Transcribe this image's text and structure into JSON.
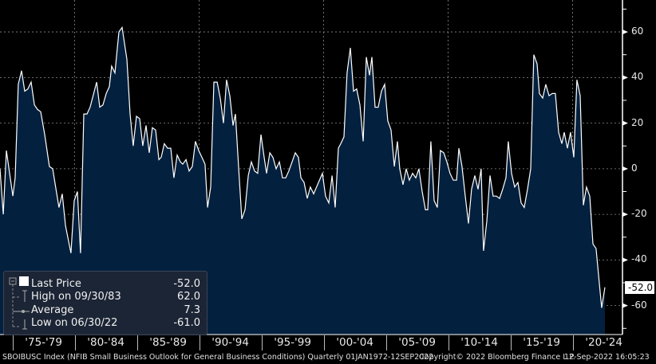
{
  "chart_data": {
    "type": "area",
    "title": "",
    "xlabel": "",
    "ylabel": "",
    "xlim": [
      1974,
      2024
    ],
    "ylim": [
      -72.7,
      74
    ],
    "y_ticks": [
      60,
      40,
      20,
      0,
      -20,
      -40,
      -60
    ],
    "x_grid_years": [
      1980,
      1990,
      2000,
      2010,
      2020
    ],
    "grid": true,
    "legend_position": "bottom-left",
    "colors": {
      "fill": "#03203f",
      "line": "#ffffff",
      "background": "#000000",
      "grid": "#8a8a8a"
    },
    "period_labels": [
      "'75-'79",
      "'80-'84",
      "'85-'89",
      "'90-'94",
      "'95-'99",
      "'00-'04",
      "'05-'09",
      "'10-'14",
      "'15-'19",
      "'20-'24"
    ],
    "last_value_label": "-52.0",
    "points": [
      [
        1974.0,
        0
      ],
      [
        1974.26,
        -20
      ],
      [
        1974.51,
        8
      ],
      [
        1975.03,
        -12
      ],
      [
        1975.22,
        -4
      ],
      [
        1975.47,
        37
      ],
      [
        1975.73,
        43
      ],
      [
        1975.99,
        34
      ],
      [
        1976.24,
        35
      ],
      [
        1976.5,
        38
      ],
      [
        1976.76,
        28
      ],
      [
        1977.01,
        26
      ],
      [
        1977.27,
        25
      ],
      [
        1977.59,
        15
      ],
      [
        1977.97,
        1
      ],
      [
        1978.23,
        0
      ],
      [
        1978.74,
        -17
      ],
      [
        1979.0,
        -11
      ],
      [
        1979.26,
        -25
      ],
      [
        1979.7,
        -37
      ],
      [
        1979.96,
        -14
      ],
      [
        1980.22,
        -10
      ],
      [
        1980.47,
        -37
      ],
      [
        1980.73,
        24
      ],
      [
        1980.99,
        24
      ],
      [
        1981.24,
        27
      ],
      [
        1981.76,
        38
      ],
      [
        1982.01,
        27
      ],
      [
        1982.27,
        28
      ],
      [
        1982.53,
        33
      ],
      [
        1982.78,
        36
      ],
      [
        1982.97,
        45
      ],
      [
        1983.23,
        42
      ],
      [
        1983.55,
        60
      ],
      [
        1983.81,
        62
      ],
      [
        1984.19,
        48
      ],
      [
        1984.45,
        24
      ],
      [
        1984.7,
        10
      ],
      [
        1984.96,
        23
      ],
      [
        1985.22,
        22
      ],
      [
        1985.47,
        10
      ],
      [
        1985.73,
        19
      ],
      [
        1985.99,
        7
      ],
      [
        1986.24,
        18
      ],
      [
        1986.5,
        17
      ],
      [
        1986.76,
        4
      ],
      [
        1986.95,
        5
      ],
      [
        1987.2,
        11
      ],
      [
        1987.46,
        9
      ],
      [
        1987.72,
        9
      ],
      [
        1987.97,
        -4
      ],
      [
        1988.23,
        6
      ],
      [
        1988.49,
        3
      ],
      [
        1988.68,
        2
      ],
      [
        1988.94,
        4
      ],
      [
        1989.19,
        -1
      ],
      [
        1989.45,
        1
      ],
      [
        1989.7,
        12
      ],
      [
        1989.96,
        8
      ],
      [
        1990.22,
        5
      ],
      [
        1990.47,
        2
      ],
      [
        1990.67,
        -17
      ],
      [
        1990.92,
        -8
      ],
      [
        1991.18,
        38
      ],
      [
        1991.44,
        38
      ],
      [
        1991.69,
        31
      ],
      [
        1991.95,
        20
      ],
      [
        1992.2,
        39
      ],
      [
        1992.46,
        32
      ],
      [
        1992.72,
        19
      ],
      [
        1992.91,
        24
      ],
      [
        1993.17,
        0
      ],
      [
        1993.42,
        -22
      ],
      [
        1993.68,
        -18
      ],
      [
        1993.94,
        -3
      ],
      [
        1994.19,
        3
      ],
      [
        1994.45,
        -1
      ],
      [
        1994.7,
        -2
      ],
      [
        1994.96,
        15
      ],
      [
        1995.22,
        5
      ],
      [
        1995.41,
        -2
      ],
      [
        1995.67,
        7
      ],
      [
        1995.92,
        5
      ],
      [
        1996.18,
        0
      ],
      [
        1996.44,
        3
      ],
      [
        1996.69,
        -4
      ],
      [
        1996.95,
        -4
      ],
      [
        1997.2,
        -1
      ],
      [
        1997.46,
        3
      ],
      [
        1997.72,
        7
      ],
      [
        1997.97,
        5
      ],
      [
        1998.17,
        -4
      ],
      [
        1998.42,
        -6
      ],
      [
        1998.68,
        -13
      ],
      [
        1998.93,
        -8
      ],
      [
        1999.19,
        -11
      ],
      [
        1999.9,
        -2
      ],
      [
        2000.15,
        -12
      ],
      [
        2000.41,
        -15
      ],
      [
        2000.67,
        -3
      ],
      [
        2000.92,
        -17
      ],
      [
        2001.18,
        9
      ],
      [
        2001.37,
        11
      ],
      [
        2001.63,
        14
      ],
      [
        2001.88,
        42
      ],
      [
        2002.14,
        53
      ],
      [
        2002.4,
        34
      ],
      [
        2002.65,
        35
      ],
      [
        2002.91,
        28
      ],
      [
        2003.17,
        12
      ],
      [
        2003.42,
        49
      ],
      [
        2003.68,
        41
      ],
      [
        2003.87,
        49
      ],
      [
        2004.13,
        27
      ],
      [
        2004.38,
        27
      ],
      [
        2004.64,
        34
      ],
      [
        2004.9,
        37
      ],
      [
        2005.15,
        21
      ],
      [
        2005.41,
        17
      ],
      [
        2005.67,
        1
      ],
      [
        2005.92,
        12
      ],
      [
        2006.11,
        0
      ],
      [
        2006.37,
        -7
      ],
      [
        2006.63,
        0
      ],
      [
        2006.88,
        -5
      ],
      [
        2007.14,
        -2
      ],
      [
        2007.4,
        -4
      ],
      [
        2007.65,
        0
      ],
      [
        2007.91,
        -10
      ],
      [
        2008.17,
        -18
      ],
      [
        2008.36,
        -18
      ],
      [
        2008.61,
        12
      ],
      [
        2008.87,
        -14
      ],
      [
        2009.13,
        -17
      ],
      [
        2009.38,
        8
      ],
      [
        2009.64,
        7
      ],
      [
        2009.9,
        3
      ],
      [
        2010.15,
        -2
      ],
      [
        2010.41,
        -5
      ],
      [
        2010.67,
        -5
      ],
      [
        2010.86,
        9
      ],
      [
        2011.11,
        1
      ],
      [
        2011.37,
        -12
      ],
      [
        2011.63,
        -24
      ],
      [
        2011.88,
        -9
      ],
      [
        2012.14,
        -3
      ],
      [
        2012.4,
        -9
      ],
      [
        2012.65,
        0
      ],
      [
        2012.84,
        -36
      ],
      [
        2013.1,
        -23
      ],
      [
        2013.36,
        -3
      ],
      [
        2013.61,
        -12
      ],
      [
        2013.87,
        -12
      ],
      [
        2014.13,
        -13
      ],
      [
        2014.38,
        -9
      ],
      [
        2014.64,
        -4
      ],
      [
        2014.83,
        12
      ],
      [
        2015.09,
        -2
      ],
      [
        2015.34,
        -8
      ],
      [
        2015.6,
        -6
      ],
      [
        2015.86,
        -15
      ],
      [
        2016.11,
        -17
      ],
      [
        2016.37,
        -9
      ],
      [
        2016.63,
        0
      ],
      [
        2016.88,
        50
      ],
      [
        2017.14,
        46
      ],
      [
        2017.33,
        33
      ],
      [
        2017.59,
        31
      ],
      [
        2017.84,
        37
      ],
      [
        2018.1,
        32
      ],
      [
        2018.36,
        33
      ],
      [
        2018.61,
        33
      ],
      [
        2018.87,
        16
      ],
      [
        2019.13,
        11
      ],
      [
        2019.32,
        16
      ],
      [
        2019.58,
        9
      ],
      [
        2019.83,
        16
      ],
      [
        2020.09,
        5
      ],
      [
        2020.34,
        39
      ],
      [
        2020.6,
        32
      ],
      [
        2020.86,
        -16
      ],
      [
        2021.11,
        -8
      ],
      [
        2021.37,
        -12
      ],
      [
        2021.63,
        -33
      ],
      [
        2021.88,
        -35
      ],
      [
        2022.33,
        -61
      ],
      [
        2022.59,
        -52
      ]
    ]
  },
  "legend": {
    "last_price_label": "Last Price",
    "last_price_value": "-52.0",
    "high_label": "High on 09/30/83",
    "high_value": "62.0",
    "average_label": "Average",
    "average_value": "7.3",
    "low_label": "Low on 06/30/22",
    "low_value": "-61.0"
  },
  "footer": {
    "description": "SBOIBUSC Index (NFIB Small Business Outlook for General Business Conditions)  Quarterly 01JAN1972-12SEP2022",
    "copyright": "Copyright© 2022 Bloomberg Finance L.P.",
    "timestamp": "12-Sep-2022 16:05:23"
  }
}
